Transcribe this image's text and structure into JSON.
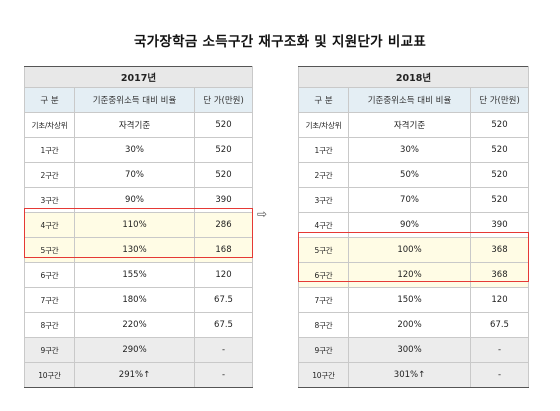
{
  "title": "국가장학금 소득구간 재구조화 및 지원단가 비교표",
  "arrow": "⇨",
  "left": {
    "year": "2017년",
    "headers": [
      "구  분",
      "기준중위소득 대비 비율",
      "단 가(만원)"
    ],
    "rows": [
      {
        "label": "기초/차상위",
        "ratio": "자격기준",
        "price": "520"
      },
      {
        "label": "1구간",
        "ratio": "30%",
        "price": "520"
      },
      {
        "label": "2구간",
        "ratio": "70%",
        "price": "520"
      },
      {
        "label": "3구간",
        "ratio": "90%",
        "price": "390"
      },
      {
        "label": "4구간",
        "ratio": "110%",
        "price": "286"
      },
      {
        "label": "5구간",
        "ratio": "130%",
        "price": "168"
      },
      {
        "label": "6구간",
        "ratio": "155%",
        "price": "120"
      },
      {
        "label": "7구간",
        "ratio": "180%",
        "price": "67.5"
      },
      {
        "label": "8구간",
        "ratio": "220%",
        "price": "67.5"
      },
      {
        "label": "9구간",
        "ratio": "290%",
        "price": "-"
      },
      {
        "label": "10구간",
        "ratio": "291%↑",
        "price": "-"
      }
    ]
  },
  "right": {
    "year": "2018년",
    "headers": [
      "구  분",
      "기준중위소득 대비 비율",
      "단 가(만원)"
    ],
    "rows": [
      {
        "label": "기초/차상위",
        "ratio": "자격기준",
        "price": "520"
      },
      {
        "label": "1구간",
        "ratio": "30%",
        "price": "520"
      },
      {
        "label": "2구간",
        "ratio": "50%",
        "price": "520"
      },
      {
        "label": "3구간",
        "ratio": "70%",
        "price": "520"
      },
      {
        "label": "4구간",
        "ratio": "90%",
        "price": "390"
      },
      {
        "label": "5구간",
        "ratio": "100%",
        "price": "368"
      },
      {
        "label": "6구간",
        "ratio": "120%",
        "price": "368"
      },
      {
        "label": "7구간",
        "ratio": "150%",
        "price": "120"
      },
      {
        "label": "8구간",
        "ratio": "200%",
        "price": "67.5"
      },
      {
        "label": "9구간",
        "ratio": "300%",
        "price": "-"
      },
      {
        "label": "10구간",
        "ratio": "301%↑",
        "price": "-"
      }
    ]
  }
}
